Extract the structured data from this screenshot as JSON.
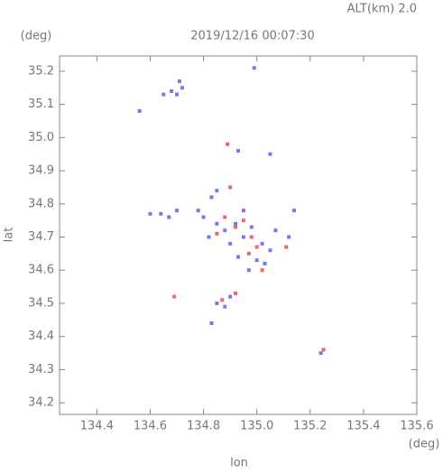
{
  "chart_data": {
    "type": "scatter",
    "annotation": "ALT(km) 2.0",
    "title": "2019/12/16 00:07:30",
    "y_unit": "(deg)",
    "x_unit": "(deg)",
    "x_label": "lon",
    "y_label": "lat",
    "xlim": [
      134.26,
      135.6
    ],
    "ylim": [
      34.165,
      35.246
    ],
    "xticks": [
      134.4,
      134.6,
      134.8,
      {
        "value": 135.0,
        "label": "135.0"
      },
      135.2,
      135.4,
      135.6
    ],
    "yticks": [
      34.2,
      34.3,
      34.4,
      34.5,
      34.6,
      34.7,
      34.8,
      34.9,
      {
        "value": 35.0,
        "label": "35.0"
      },
      35.1,
      35.2
    ],
    "series": [
      {
        "color": "#7777ee",
        "x": [
          134.68,
          134.7,
          134.72,
          134.65,
          134.56,
          134.71,
          134.99,
          134.93,
          135.05,
          134.85,
          134.83,
          134.6,
          134.64,
          134.67,
          134.7,
          134.8,
          134.85,
          134.88,
          134.92,
          134.95,
          134.98,
          135.02,
          135.05,
          134.9,
          134.93,
          135.0,
          135.03,
          134.85,
          134.88,
          134.9,
          134.83,
          135.14,
          135.12,
          135.24,
          134.97,
          134.82,
          135.07,
          134.78,
          134.95
        ],
        "y": [
          35.14,
          35.13,
          35.15,
          35.13,
          35.08,
          35.17,
          35.21,
          34.96,
          34.95,
          34.84,
          34.82,
          34.77,
          34.77,
          34.76,
          34.78,
          34.76,
          34.74,
          34.72,
          34.74,
          34.7,
          34.73,
          34.68,
          34.66,
          34.68,
          34.64,
          34.63,
          34.62,
          34.5,
          34.49,
          34.52,
          34.44,
          34.78,
          34.7,
          34.35,
          34.6,
          34.7,
          34.72,
          34.78,
          34.78
        ]
      },
      {
        "color": "#ee6666",
        "x": [
          134.89,
          134.69,
          134.88,
          134.92,
          134.95,
          134.98,
          135.0,
          134.97,
          135.02,
          134.92,
          134.87,
          134.9,
          135.11,
          134.85,
          135.25
        ],
        "y": [
          34.98,
          34.52,
          34.76,
          34.73,
          34.75,
          34.7,
          34.67,
          34.65,
          34.6,
          34.53,
          34.51,
          34.85,
          34.67,
          34.71,
          34.36
        ]
      }
    ]
  }
}
